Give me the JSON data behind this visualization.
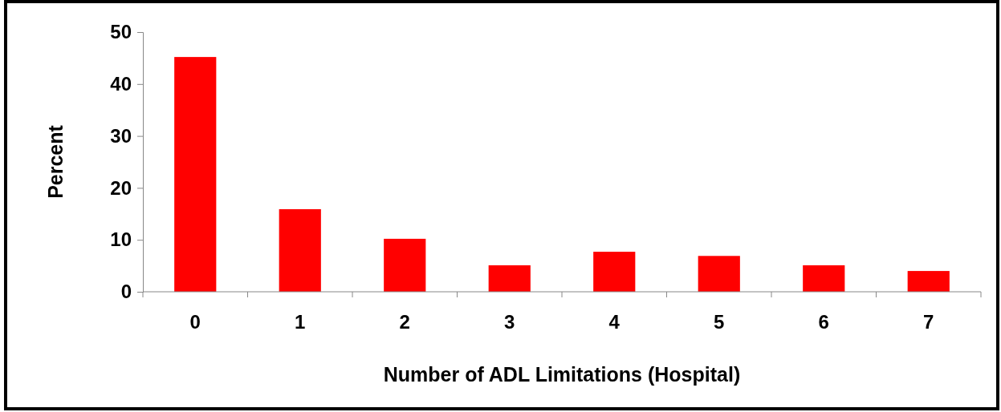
{
  "chart_data": {
    "type": "bar",
    "xlabel": "Number of ADL Limitations (Hospital)",
    "ylabel": "Percent",
    "categories": [
      "0",
      "1",
      "2",
      "3",
      "4",
      "5",
      "6",
      "7"
    ],
    "values": [
      45.2,
      15.9,
      10.2,
      5.1,
      7.7,
      6.9,
      5.1,
      4.0
    ],
    "color": "#ff0000",
    "ylim": [
      0,
      50
    ],
    "yticks": [
      0,
      10,
      20,
      30,
      40,
      50
    ],
    "grid": false
  }
}
